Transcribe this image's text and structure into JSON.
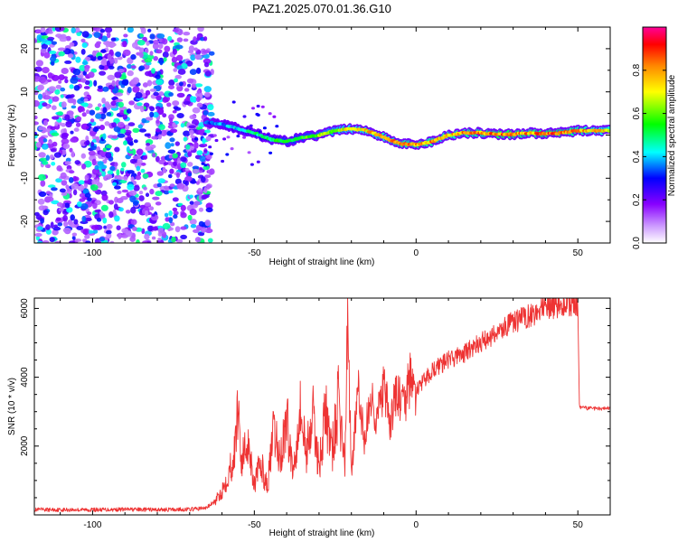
{
  "figure": {
    "title": "PAZ1.2025.070.01.36.G10"
  },
  "chart_data": [
    {
      "type": "heatmap",
      "xlabel": "Height of straight line (km)",
      "ylabel": "Frequency (Hz)",
      "xlim": [
        -118,
        60
      ],
      "ylim": [
        -25,
        25
      ],
      "xticks": [
        -100,
        -50,
        0,
        50
      ],
      "yticks": [
        -20,
        -10,
        0,
        10,
        20
      ],
      "grid": false,
      "colorbar": {
        "label": "Normalized spectral amplitude",
        "range": [
          0,
          1
        ],
        "ticks": [
          0,
          0.2,
          0.4,
          0.6,
          0.8
        ],
        "tick_labels": [
          "0.0",
          "0.2",
          "0.4",
          "0.6",
          "0.8"
        ],
        "colormap": [
          "#ffffff",
          "#8800ff",
          "#0000ff",
          "#00ffff",
          "#00ff00",
          "#ffff00",
          "#ff8800",
          "#ff0000",
          "#ff0099"
        ]
      },
      "ridge": {
        "x": [
          -65,
          -60,
          -55,
          -50,
          -45,
          -40,
          -35,
          -30,
          -25,
          -20,
          -15,
          -10,
          -5,
          0,
          5,
          10,
          15,
          20,
          25,
          30,
          35,
          40,
          45,
          50,
          55,
          60
        ],
        "frequency": [
          3,
          2.5,
          1.5,
          0.5,
          -1,
          -1.5,
          -0.5,
          0,
          1,
          1.5,
          1,
          -0.5,
          -2,
          -2.2,
          -1.5,
          0,
          0.5,
          0.5,
          0.2,
          0.2,
          0.5,
          0.3,
          0.5,
          1,
          1,
          1
        ],
        "amplitude": [
          0.35,
          0.4,
          0.45,
          0.5,
          0.55,
          0.6,
          0.6,
          0.65,
          0.7,
          0.75,
          0.8,
          0.8,
          0.85,
          0.85,
          0.85,
          0.8,
          0.85,
          0.85,
          0.9,
          0.9,
          0.85,
          0.9,
          0.9,
          0.85,
          0.8,
          0.8
        ]
      },
      "noise_region": {
        "x_range": [
          -118,
          -65
        ],
        "amplitude_range": [
          0.1,
          0.5
        ]
      }
    },
    {
      "type": "line",
      "xlabel": "Height of straight line (km)",
      "ylabel": "SNR (10 * v/v)",
      "xlim": [
        -118,
        60
      ],
      "ylim": [
        0,
        6300
      ],
      "xticks": [
        -100,
        -50,
        0,
        50
      ],
      "yticks": [
        2000,
        4000,
        6000
      ],
      "grid": false,
      "series": [
        {
          "color": "#ee3333",
          "x": [
            -118,
            -110,
            -100,
            -90,
            -80,
            -70,
            -65,
            -62,
            -60,
            -58,
            -56,
            -55,
            -54,
            -52,
            -50,
            -48,
            -46,
            -44,
            -42,
            -40,
            -38,
            -36,
            -34,
            -32,
            -30,
            -28,
            -26,
            -24,
            -22,
            -21,
            -20,
            -18,
            -16,
            -14,
            -12,
            -10,
            -8,
            -6,
            -4,
            -2,
            0,
            5,
            10,
            15,
            20,
            25,
            30,
            35,
            40,
            45,
            49,
            50,
            50.5,
            55,
            60
          ],
          "y": [
            150,
            150,
            150,
            160,
            150,
            160,
            200,
            400,
            700,
            1200,
            1800,
            3400,
            1500,
            2200,
            900,
            1500,
            800,
            2400,
            1600,
            2800,
            1200,
            3200,
            1800,
            2900,
            1400,
            3000,
            1800,
            3300,
            1500,
            5800,
            1200,
            3600,
            2200,
            3400,
            2800,
            3700,
            2600,
            3600,
            3100,
            3900,
            3600,
            4200,
            4500,
            4700,
            5000,
            5300,
            5600,
            5800,
            6000,
            6100,
            6100,
            6000,
            3100,
            3100,
            3100
          ]
        }
      ]
    }
  ]
}
